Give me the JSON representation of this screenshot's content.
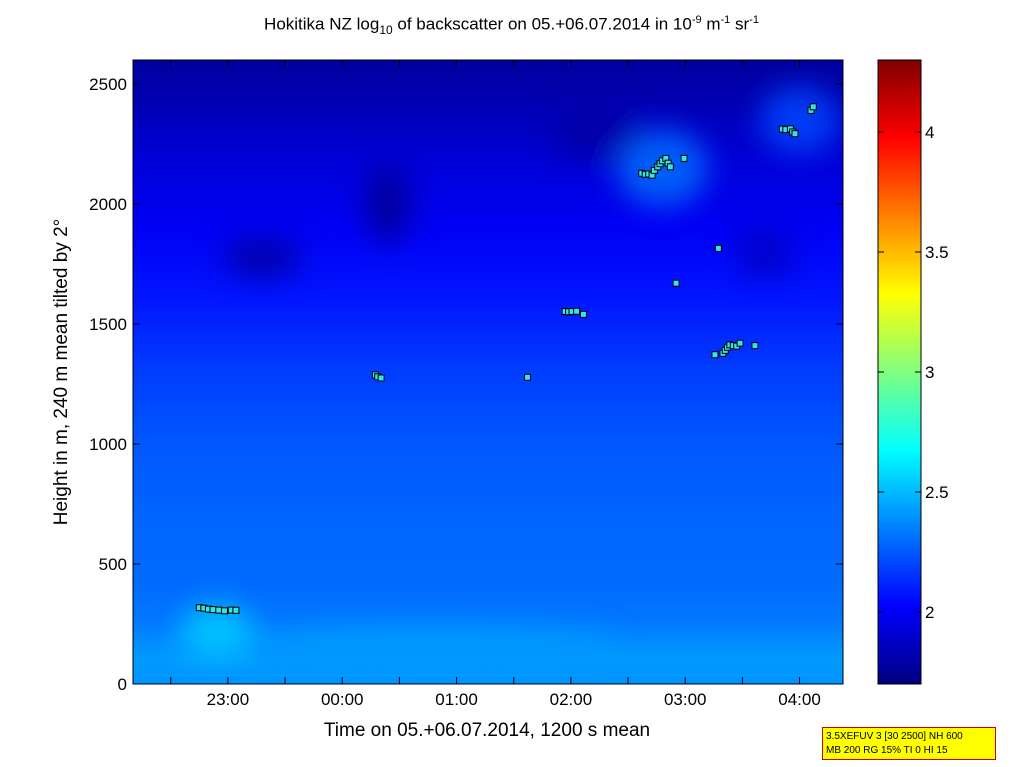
{
  "title": {
    "pre": "Hokitika NZ log",
    "sub": "10",
    "mid": " of backscatter on 05.+06.07.2014 in 10",
    "sup1": "-9",
    "mid2": " m",
    "sup2": "-1",
    "mid3": " sr",
    "sup3": "-1"
  },
  "info_box": {
    "line1": "3.5XEFUV 3 [30 2500] NH 600",
    "line2": "MB 200 RG 15% TI 0 HI 15"
  },
  "chart_data": {
    "type": "heatmap",
    "xlabel": "Time on 05.+06.07.2014, 1200 s mean",
    "ylabel": "Height in m, 240 m mean tilted by 2°",
    "x_axis": {
      "unit": "hours since 00:00 on 06.07.2014",
      "range": [
        -1.83,
        4.38
      ],
      "ticks": [
        {
          "value": -1,
          "label": "23:00"
        },
        {
          "value": 0,
          "label": "00:00"
        },
        {
          "value": 1,
          "label": "01:00"
        },
        {
          "value": 2,
          "label": "02:00"
        },
        {
          "value": 3,
          "label": "03:00"
        },
        {
          "value": 4,
          "label": "04:00"
        }
      ],
      "minor_ticks": [
        -1.5,
        -0.5,
        0.5,
        1.5,
        2.5,
        3.5
      ]
    },
    "y_axis": {
      "range": [
        0,
        2600
      ],
      "ticks": [
        0,
        500,
        1000,
        1500,
        2000,
        2500
      ]
    },
    "colorbar": {
      "range": [
        1.7,
        4.3
      ],
      "ticks": [
        2,
        2.5,
        3,
        3.5,
        4
      ]
    },
    "field_description": "log10 backscatter, highest near ground (~2.5), decreasing with height to ~1.8 above 2400 m",
    "field_profile": [
      {
        "height": 0,
        "value": 2.4
      },
      {
        "height": 100,
        "value": 2.42
      },
      {
        "height": 180,
        "value": 2.38
      },
      {
        "height": 260,
        "value": 2.33
      },
      {
        "height": 400,
        "value": 2.3
      },
      {
        "height": 700,
        "value": 2.28
      },
      {
        "height": 1000,
        "value": 2.25
      },
      {
        "height": 1300,
        "value": 2.18
      },
      {
        "height": 1600,
        "value": 2.08
      },
      {
        "height": 1900,
        "value": 2.0
      },
      {
        "height": 2200,
        "value": 1.92
      },
      {
        "height": 2450,
        "value": 1.82
      },
      {
        "height": 2600,
        "value": 1.78
      }
    ],
    "features": [
      {
        "x": -1.1,
        "height": 220,
        "value": 2.55,
        "rx": 0.32,
        "ry": 110
      },
      {
        "x": 0.8,
        "height": 170,
        "value": 2.42,
        "rx": 1.6,
        "ry": 70
      },
      {
        "x": 2.8,
        "height": 2150,
        "value": 2.3,
        "rx": 0.4,
        "ry": 160
      },
      {
        "x": 4.0,
        "height": 2350,
        "value": 2.2,
        "rx": 0.35,
        "ry": 140
      },
      {
        "x": 0.4,
        "height": 2000,
        "value": 1.75,
        "rx": 0.2,
        "ry": 160
      },
      {
        "x": -0.7,
        "height": 1780,
        "value": 1.8,
        "rx": 0.35,
        "ry": 90
      },
      {
        "x": 2.2,
        "height": 2300,
        "value": 1.8,
        "rx": 0.4,
        "ry": 120
      },
      {
        "x": 3.7,
        "height": 1800,
        "value": 1.88,
        "rx": 0.25,
        "ry": 110
      }
    ],
    "markers": [
      {
        "x": -1.25,
        "y": 318
      },
      {
        "x": -1.21,
        "y": 316
      },
      {
        "x": -1.17,
        "y": 312
      },
      {
        "x": -1.13,
        "y": 310
      },
      {
        "x": -1.08,
        "y": 308
      },
      {
        "x": -1.03,
        "y": 305
      },
      {
        "x": -0.97,
        "y": 308
      },
      {
        "x": -0.93,
        "y": 307
      },
      {
        "x": 0.29,
        "y": 1288
      },
      {
        "x": 0.31,
        "y": 1280
      },
      {
        "x": 0.34,
        "y": 1275
      },
      {
        "x": 1.62,
        "y": 1278
      },
      {
        "x": 1.95,
        "y": 1552
      },
      {
        "x": 1.98,
        "y": 1551
      },
      {
        "x": 2.01,
        "y": 1552
      },
      {
        "x": 2.05,
        "y": 1553
      },
      {
        "x": 2.11,
        "y": 1540
      },
      {
        "x": 2.62,
        "y": 2128
      },
      {
        "x": 2.65,
        "y": 2124
      },
      {
        "x": 2.68,
        "y": 2125
      },
      {
        "x": 2.71,
        "y": 2120
      },
      {
        "x": 2.73,
        "y": 2140
      },
      {
        "x": 2.76,
        "y": 2155
      },
      {
        "x": 2.78,
        "y": 2168
      },
      {
        "x": 2.8,
        "y": 2180
      },
      {
        "x": 2.83,
        "y": 2190
      },
      {
        "x": 2.85,
        "y": 2170
      },
      {
        "x": 2.87,
        "y": 2155
      },
      {
        "x": 2.99,
        "y": 2190
      },
      {
        "x": 2.92,
        "y": 1670
      },
      {
        "x": 3.29,
        "y": 1815
      },
      {
        "x": 3.26,
        "y": 1372
      },
      {
        "x": 3.33,
        "y": 1378
      },
      {
        "x": 3.35,
        "y": 1390
      },
      {
        "x": 3.37,
        "y": 1403
      },
      {
        "x": 3.39,
        "y": 1413
      },
      {
        "x": 3.42,
        "y": 1410
      },
      {
        "x": 3.45,
        "y": 1408
      },
      {
        "x": 3.48,
        "y": 1420
      },
      {
        "x": 3.61,
        "y": 1410
      },
      {
        "x": 3.85,
        "y": 2312
      },
      {
        "x": 3.88,
        "y": 2310
      },
      {
        "x": 3.92,
        "y": 2313
      },
      {
        "x": 3.94,
        "y": 2300
      },
      {
        "x": 3.96,
        "y": 2293
      },
      {
        "x": 4.1,
        "y": 2390
      },
      {
        "x": 4.12,
        "y": 2405
      }
    ]
  }
}
